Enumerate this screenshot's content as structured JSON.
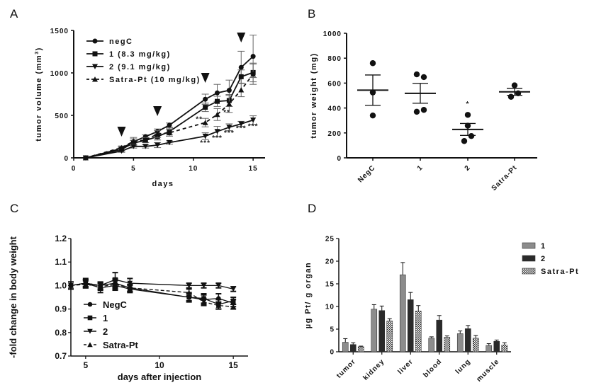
{
  "chart_data": [
    {
      "panel": "A",
      "type": "line",
      "title": "",
      "xlabel": "days",
      "ylabel": "tumor volume (mm³)",
      "xlim": [
        0,
        16
      ],
      "ylim": [
        0,
        1500
      ],
      "xticks": [
        0,
        5,
        10,
        15
      ],
      "yticks": [
        0,
        500,
        1000,
        1500
      ],
      "grid": false,
      "legend_position": "top-left",
      "injection_markers_x": [
        4,
        7,
        11,
        14
      ],
      "x": [
        1,
        4,
        5,
        6,
        7,
        8,
        11,
        12,
        13,
        14,
        15
      ],
      "series": [
        {
          "name": "negC",
          "marker": "circle",
          "dash": false,
          "values": [
            0,
            110,
            190,
            250,
            310,
            385,
            690,
            765,
            795,
            1065,
            1195
          ],
          "errors": [
            0,
            20,
            50,
            20,
            30,
            25,
            60,
            100,
            120,
            190,
            250
          ]
        },
        {
          "name": "1 (8.3 mg/kg)",
          "marker": "square",
          "dash": false,
          "values": [
            0,
            100,
            175,
            205,
            250,
            310,
            595,
            665,
            675,
            955,
            1005
          ],
          "errors": [
            0,
            20,
            30,
            25,
            40,
            40,
            50,
            60,
            70,
            80,
            110
          ]
        },
        {
          "name": "2 (9.1 mg/kg)",
          "marker": "triangle-down",
          "dash": false,
          "values": [
            0,
            80,
            135,
            135,
            150,
            180,
            255,
            310,
            360,
            400,
            445
          ],
          "errors": [
            0,
            15,
            20,
            20,
            30,
            20,
            40,
            60,
            40,
            30,
            50
          ]
        },
        {
          "name": "Satra-Pt (10 mg/kg)",
          "marker": "triangle-up",
          "dash": true,
          "values": [
            0,
            120,
            195,
            210,
            280,
            295,
            415,
            510,
            635,
            800,
            985
          ],
          "errors": [
            0,
            20,
            30,
            30,
            40,
            40,
            50,
            70,
            100,
            80,
            120
          ]
        }
      ],
      "annotations": [
        {
          "text": "**",
          "x": 10.5,
          "y": 430
        },
        {
          "text": "**",
          "x": 12.8,
          "y": 510
        },
        {
          "text": "***",
          "x": 11,
          "y": 150
        },
        {
          "text": "***",
          "x": 12,
          "y": 210
        },
        {
          "text": "***",
          "x": 13,
          "y": 265
        },
        {
          "text": "***",
          "x": 14,
          "y": 320
        },
        {
          "text": "***",
          "x": 15,
          "y": 345
        }
      ]
    },
    {
      "panel": "B",
      "type": "scatter",
      "title": "",
      "xlabel": "",
      "ylabel": "tumor weight (mg)",
      "ylim": [
        0,
        1000
      ],
      "yticks": [
        0,
        200,
        400,
        600,
        800,
        1000
      ],
      "grid": false,
      "categories": [
        "NegC",
        "1",
        "2",
        "Satra-Pt"
      ],
      "points": [
        [
          760,
          525,
          340
        ],
        [
          670,
          648,
          385,
          370
        ],
        [
          345,
          258,
          175,
          135
        ],
        [
          582,
          518,
          490
        ]
      ],
      "mean": [
        543,
        518,
        228,
        530
      ],
      "sem": [
        122,
        80,
        48,
        28
      ],
      "annotations": [
        {
          "text": "*",
          "category": "2",
          "y": 415
        }
      ]
    },
    {
      "panel": "C",
      "type": "line",
      "title": "",
      "xlabel": "days after injection",
      "ylabel": "-fold change in body weight",
      "xlim": [
        4,
        16
      ],
      "ylim": [
        0.7,
        1.2
      ],
      "xticks": [
        5,
        10,
        15
      ],
      "yticks": [
        0.7,
        0.8,
        0.9,
        1.0,
        1.1,
        1.2
      ],
      "grid": false,
      "legend_position": "bottom-left",
      "x": [
        4,
        5,
        6,
        7,
        8,
        12,
        13,
        14,
        15
      ],
      "series": [
        {
          "name": "NegC",
          "marker": "circle",
          "dash": false,
          "values": [
            1.0,
            1.01,
            1.0,
            1.01,
            0.99,
            0.95,
            0.94,
            0.945,
            0.925
          ],
          "errors": [
            0.015,
            0.015,
            0.015,
            0.02,
            0.015,
            0.015,
            0.02,
            0.02,
            0.015
          ]
        },
        {
          "name": "1",
          "marker": "square",
          "dash": false,
          "values": [
            1.0,
            1.01,
            0.99,
            1.0,
            0.985,
            0.95,
            0.945,
            0.92,
            0.935
          ],
          "errors": [
            0.015,
            0.02,
            0.02,
            0.02,
            0.015,
            0.02,
            0.02,
            0.02,
            0.015
          ]
        },
        {
          "name": "2",
          "marker": "triangle-down",
          "dash": false,
          "values": [
            1.0,
            1.01,
            1.0,
            1.025,
            1.01,
            1.0,
            1.0,
            1.0,
            0.985
          ],
          "errors": [
            0.015,
            0.015,
            0.015,
            0.03,
            0.02,
            0.01,
            0.01,
            0.01,
            0.01
          ]
        },
        {
          "name": "Satra-Pt",
          "marker": "triangle-up",
          "dash": true,
          "values": [
            1.0,
            1.005,
            0.995,
            1.005,
            0.99,
            0.97,
            0.93,
            0.915,
            0.91
          ],
          "errors": [
            0.015,
            0.015,
            0.015,
            0.02,
            0.015,
            0.015,
            0.015,
            0.015,
            0.01
          ]
        }
      ]
    },
    {
      "panel": "D",
      "type": "bar",
      "title": "",
      "xlabel": "",
      "ylabel": "µg Pt/ g organ",
      "ylim": [
        0,
        25
      ],
      "yticks": [
        0,
        5,
        10,
        15,
        20,
        25
      ],
      "grid": false,
      "legend_position": "top-right",
      "categories": [
        "tumor",
        "kidney",
        "liver",
        "blood",
        "lung",
        "muscle"
      ],
      "series": [
        {
          "name": "1",
          "fill": "#8c8c8c",
          "pattern": "solid",
          "values": [
            2.1,
            9.4,
            17.0,
            3.0,
            4.0,
            1.4
          ],
          "errors": [
            0.8,
            1.0,
            2.7,
            0.3,
            0.6,
            0.4
          ]
        },
        {
          "name": "2",
          "fill": "#2a2a2a",
          "pattern": "solid",
          "values": [
            1.6,
            9.1,
            11.5,
            7.0,
            5.1,
            2.3
          ],
          "errors": [
            0.4,
            1.0,
            1.6,
            1.0,
            0.7,
            0.3
          ]
        },
        {
          "name": "Satra-Pt",
          "fill": "#ffffff",
          "pattern": "checker",
          "values": [
            1.1,
            6.8,
            9.0,
            3.2,
            3.0,
            1.5
          ],
          "errors": [
            0.15,
            0.5,
            1.2,
            0.3,
            0.6,
            0.5
          ]
        }
      ]
    }
  ],
  "panels": {
    "a": {
      "letter": "A",
      "xlabel": "days",
      "ylabel": "tumor volume (mm",
      "ylabel_sup": "3",
      "ylabel_end": ")"
    },
    "b": {
      "letter": "B",
      "ylabel": "tumor weight (mg)"
    },
    "c": {
      "letter": "C",
      "xlabel": "days after injection",
      "ylabel": "-fold change in body weight"
    },
    "d": {
      "letter": "D",
      "ylabel": "µg Pt/ g organ"
    }
  }
}
